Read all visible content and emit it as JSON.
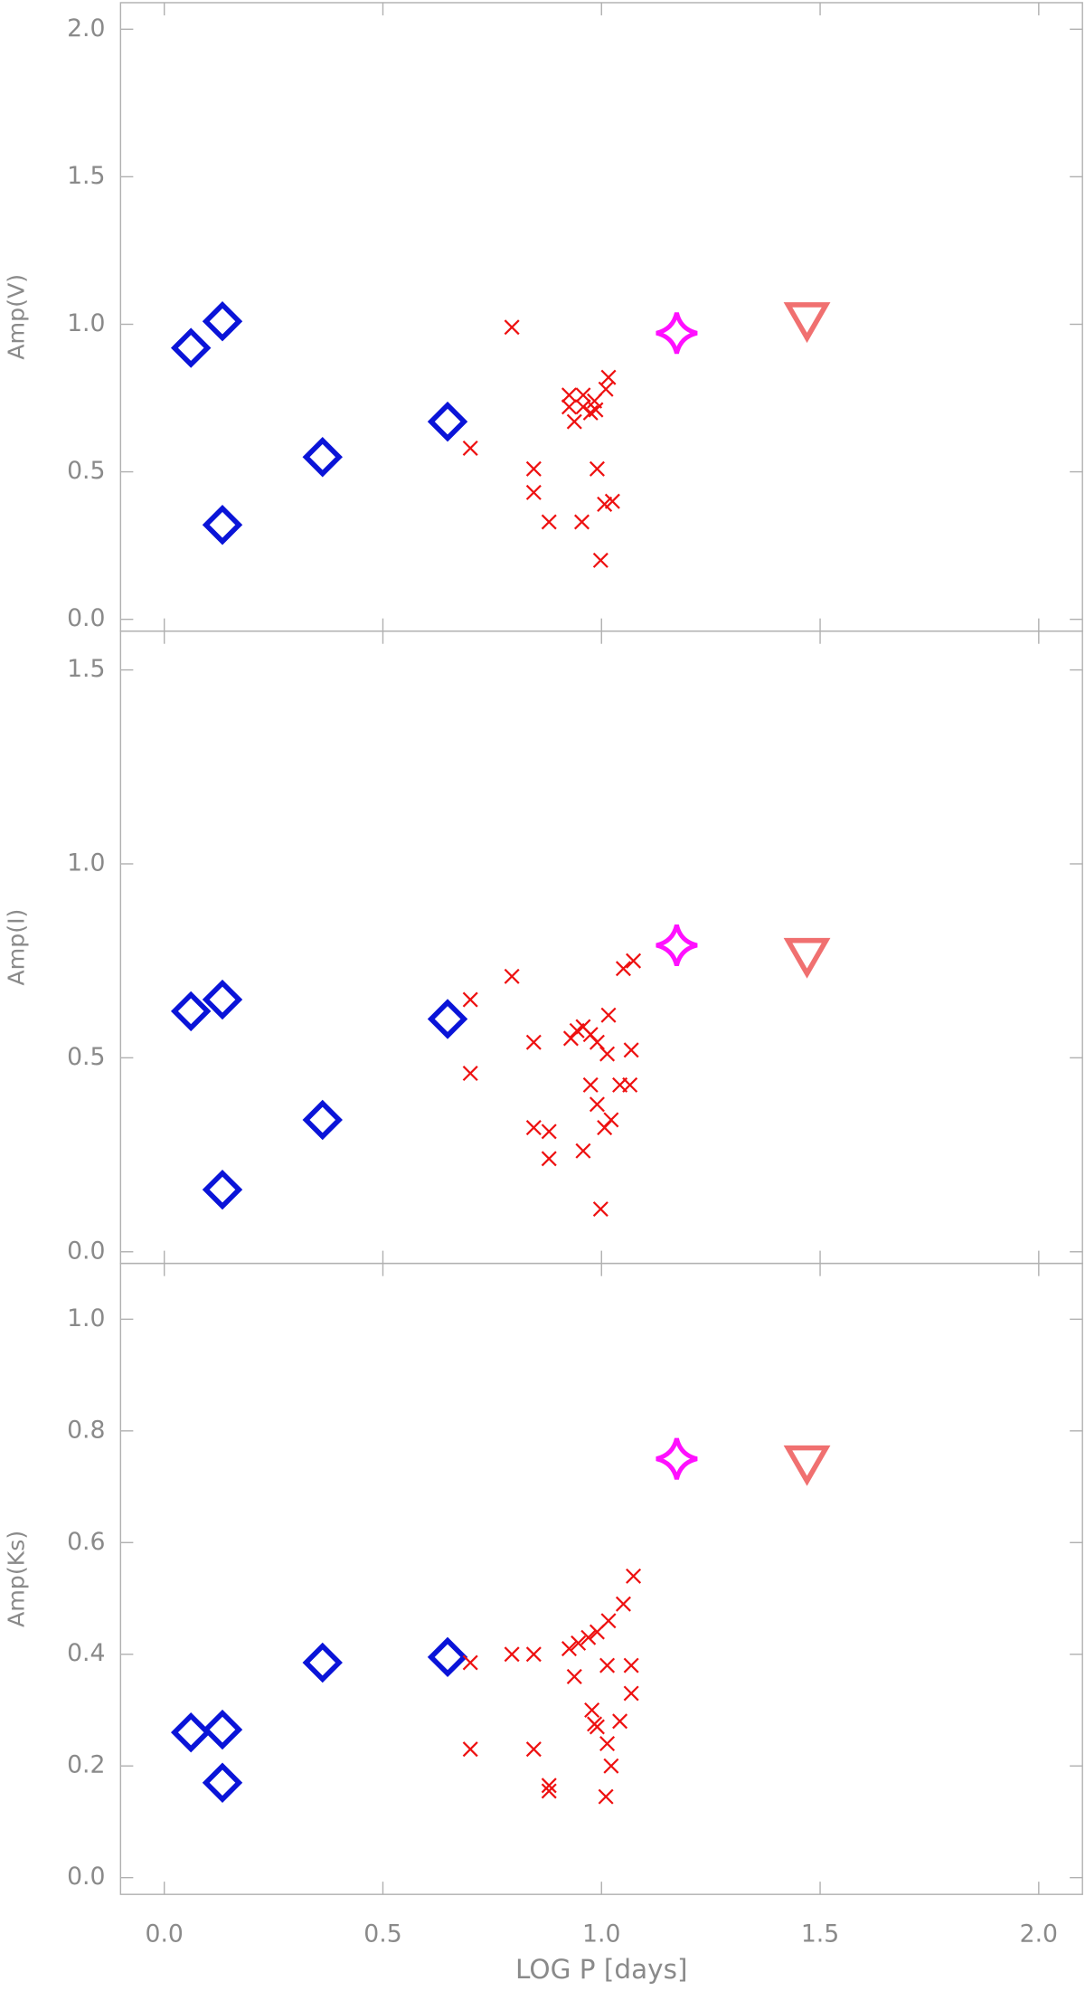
{
  "chart_data": [
    {
      "type": "scatter",
      "ylabel": "Amp(V)",
      "xlim": [
        -0.1,
        2.1
      ],
      "ylim": [
        -0.04,
        2.09
      ],
      "yticks": [
        {
          "value": 0,
          "label": "0.0"
        },
        {
          "value": 0.5,
          "label": "0.5"
        },
        {
          "value": 1,
          "label": "1.0"
        },
        {
          "value": 1.5,
          "label": "1.5"
        },
        {
          "value": 2,
          "label": "2.0"
        }
      ],
      "series": [
        {
          "marker": "diamond",
          "color": "#0a14d8",
          "x": [
            0.061,
            0.133,
            0.362,
            0.133,
            0.648
          ],
          "values": [
            0.92,
            1.01,
            0.55,
            0.32,
            0.67
          ]
        },
        {
          "marker": "cross",
          "color": "#ee1111",
          "x": [
            0.795,
            0.7,
            0.845,
            0.845,
            0.88,
            0.926,
            0.958,
            0.938,
            0.958,
            0.975,
            0.987,
            0.984,
            1.01,
            1.016,
            0.955,
            0.99,
            0.998,
            1.007,
            1.025,
            0.926
          ],
          "values": [
            0.99,
            0.58,
            0.51,
            0.43,
            0.33,
            0.76,
            0.76,
            0.67,
            0.72,
            0.7,
            0.71,
            0.74,
            0.78,
            0.82,
            0.33,
            0.51,
            0.2,
            0.39,
            0.4,
            0.72
          ]
        },
        {
          "marker": "star",
          "color": "#ff10ff",
          "x": [
            1.172
          ],
          "values": [
            0.97
          ]
        },
        {
          "marker": "triangle",
          "color": "#f07070",
          "x": [
            1.47
          ],
          "values": [
            1.01
          ]
        }
      ]
    },
    {
      "type": "scatter",
      "ylabel": "Amp(I)",
      "xlim": [
        -0.1,
        2.1
      ],
      "ylim": [
        -0.03,
        1.6
      ],
      "yticks": [
        {
          "value": 0,
          "label": "0.0"
        },
        {
          "value": 0.5,
          "label": "0.5"
        },
        {
          "value": 1,
          "label": "1.0"
        },
        {
          "value": 1.5,
          "label": "1.5"
        }
      ],
      "series": [
        {
          "marker": "diamond",
          "color": "#0a14d8",
          "x": [
            0.061,
            0.133,
            0.362,
            0.133,
            0.648
          ],
          "values": [
            0.62,
            0.65,
            0.34,
            0.16,
            0.6
          ]
        },
        {
          "marker": "cross",
          "color": "#ee1111",
          "x": [
            0.7,
            0.7,
            0.795,
            0.845,
            0.845,
            0.88,
            0.88,
            0.93,
            0.944,
            0.958,
            0.975,
            0.99,
            1.016,
            1.013,
            0.975,
            0.99,
            0.998,
            0.958,
            1.007,
            1.022,
            1.042,
            1.05,
            1.073,
            1.068,
            1.065
          ],
          "values": [
            0.65,
            0.46,
            0.71,
            0.54,
            0.32,
            0.31,
            0.24,
            0.55,
            0.57,
            0.58,
            0.56,
            0.54,
            0.61,
            0.51,
            0.43,
            0.38,
            0.11,
            0.26,
            0.32,
            0.34,
            0.43,
            0.73,
            0.75,
            0.52,
            0.43
          ]
        },
        {
          "marker": "star",
          "color": "#ff10ff",
          "x": [
            1.172
          ],
          "values": [
            0.79
          ]
        },
        {
          "marker": "triangle",
          "color": "#f07070",
          "x": [
            1.47
          ],
          "values": [
            0.76
          ]
        }
      ]
    },
    {
      "type": "scatter",
      "ylabel": "Amp(Ks)",
      "xlabel": "LOG P [days]",
      "xlim": [
        -0.1,
        2.1
      ],
      "ylim": [
        -0.03,
        1.1
      ],
      "xticks": [
        {
          "value": 0,
          "label": "0.0"
        },
        {
          "value": 0.5,
          "label": "0.5"
        },
        {
          "value": 1,
          "label": "1.0"
        },
        {
          "value": 1.5,
          "label": "1.5"
        },
        {
          "value": 2,
          "label": "2.0"
        }
      ],
      "yticks": [
        {
          "value": 0,
          "label": "0.0"
        },
        0.2,
        0.4,
        0.6,
        0.8,
        {
          "value": 1,
          "label": "1.0"
        }
      ],
      "series": [
        {
          "marker": "diamond",
          "color": "#0a14d8",
          "x": [
            0.061,
            0.133,
            0.362,
            0.133,
            0.648
          ],
          "values": [
            0.26,
            0.265,
            0.385,
            0.17,
            0.395
          ]
        },
        {
          "marker": "cross",
          "color": "#ee1111",
          "x": [
            0.7,
            0.7,
            0.795,
            0.845,
            0.845,
            0.88,
            0.88,
            0.926,
            0.938,
            0.947,
            0.97,
            0.99,
            1.016,
            1.013,
            0.978,
            0.984,
            0.99,
            1.013,
            1.022,
            1.01,
            1.042,
            1.05,
            1.073,
            1.068,
            1.068
          ],
          "values": [
            0.385,
            0.23,
            0.4,
            0.4,
            0.23,
            0.165,
            0.155,
            0.41,
            0.36,
            0.42,
            0.43,
            0.44,
            0.46,
            0.38,
            0.3,
            0.275,
            0.27,
            0.24,
            0.2,
            0.145,
            0.28,
            0.49,
            0.54,
            0.38,
            0.33
          ]
        },
        {
          "marker": "star",
          "color": "#ff10ff",
          "x": [
            1.172
          ],
          "values": [
            0.75
          ]
        },
        {
          "marker": "triangle",
          "color": "#f07070",
          "x": [
            1.47
          ],
          "values": [
            0.74
          ]
        }
      ]
    }
  ]
}
